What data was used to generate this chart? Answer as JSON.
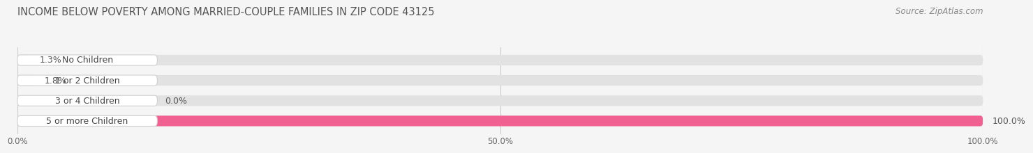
{
  "title": "INCOME BELOW POVERTY AMONG MARRIED-COUPLE FAMILIES IN ZIP CODE 43125",
  "source": "Source: ZipAtlas.com",
  "categories": [
    "No Children",
    "1 or 2 Children",
    "3 or 4 Children",
    "5 or more Children"
  ],
  "values": [
    1.3,
    1.8,
    0.0,
    100.0
  ],
  "bar_colors": [
    "#cbaed6",
    "#68c5bf",
    "#aab2e0",
    "#f06090"
  ],
  "background_color": "#f5f5f5",
  "bar_bg_color": "#e2e2e2",
  "label_bg_color": "#ffffff",
  "xlim": [
    0,
    100
  ],
  "xtick_labels": [
    "0.0%",
    "50.0%",
    "100.0%"
  ],
  "title_fontsize": 10.5,
  "label_fontsize": 9,
  "value_fontsize": 9,
  "source_fontsize": 8.5
}
